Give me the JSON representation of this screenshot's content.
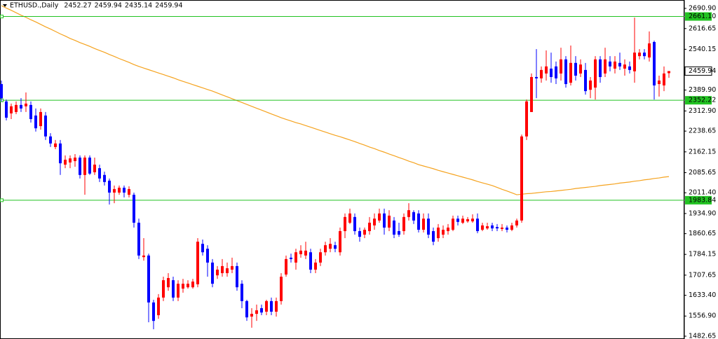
{
  "chart_data": {
    "type": "candlestick",
    "title": "ETHUSD.,Daily",
    "header_values": [
      2452.27,
      2459.94,
      2435.14,
      2459.94
    ],
    "up_color": "#ff0000",
    "down_color": "#0000ff",
    "open": [
      2412,
      2348,
      2304,
      2309,
      2335,
      2330,
      2335,
      2296,
      2257,
      2296,
      2219,
      2180,
      2193,
      2115,
      2123,
      2128,
      2141,
      2077,
      2141,
      2087,
      2102,
      2077,
      2056,
      2012,
      2012,
      2030,
      2004,
      2004,
      1901,
      1774,
      1780,
      1607,
      1560,
      1625,
      1663,
      1689,
      1625,
      1658,
      1663,
      1663,
      1674,
      1823,
      1805,
      1754,
      1707,
      1715,
      1715,
      1728,
      1741,
      1676,
      1612,
      1555,
      1565,
      1586,
      1573,
      1612,
      1573,
      1612,
      1710,
      1772,
      1754,
      1785,
      1780,
      1792,
      1728,
      1754,
      1792,
      1805,
      1818,
      1792,
      1870,
      1901,
      1922,
      1870,
      1857,
      1870,
      1891,
      1909,
      1935,
      1883,
      1909,
      1870,
      1870,
      1922,
      1940,
      1935,
      1875,
      1916,
      1870,
      1844,
      1857,
      1870,
      1875,
      1916,
      1901,
      1906,
      1906,
      1916,
      1875,
      1880,
      1891,
      1885,
      1878,
      1883,
      1875,
      1891,
      1909,
      2219,
      2309,
      2438,
      2433,
      2451,
      2469,
      2477,
      2451,
      2503,
      2417,
      2490,
      2451,
      2464,
      2391,
      2399,
      2503,
      2451,
      2495,
      2469,
      2490,
      2469,
      2477,
      2459,
      2515,
      2528,
      2510,
      2567,
      2412,
      2407,
      2452.27
    ],
    "high": [
      2425,
      2355,
      2340,
      2348,
      2360,
      2381,
      2348,
      2322,
      2322,
      2309,
      2231,
      2206,
      2206,
      2149,
      2149,
      2154,
      2149,
      2149,
      2149,
      2141,
      2115,
      2089,
      2064,
      2038,
      2038,
      2038,
      2035,
      2012,
      1916,
      1844,
      1787,
      1617,
      1638,
      1702,
      1715,
      1702,
      1689,
      1694,
      1689,
      1694,
      1844,
      1839,
      1818,
      1767,
      1741,
      1767,
      1754,
      1772,
      1754,
      1689,
      1617,
      1586,
      1599,
      1599,
      1617,
      1625,
      1625,
      1715,
      1780,
      1787,
      1805,
      1818,
      1831,
      1805,
      1767,
      1805,
      1831,
      1844,
      1831,
      1883,
      1935,
      1953,
      1935,
      1883,
      1883,
      1922,
      1935,
      1953,
      1953,
      1947,
      1922,
      1901,
      1935,
      1973,
      1947,
      1947,
      1935,
      1935,
      1883,
      1896,
      1891,
      1896,
      1927,
      1927,
      1927,
      1922,
      1932,
      1935,
      1901,
      1901,
      1901,
      1896,
      1896,
      1891,
      1901,
      1916,
      2226,
      2355,
      2451,
      2541,
      2477,
      2536,
      2528,
      2495,
      2546,
      2515,
      2554,
      2515,
      2503,
      2490,
      2438,
      2515,
      2515,
      2546,
      2515,
      2515,
      2528,
      2503,
      2495,
      2657,
      2541,
      2541,
      2606,
      2572,
      2443,
      2477,
      2459.94
    ],
    "low": [
      2348,
      2278,
      2283,
      2301,
      2309,
      2309,
      2270,
      2237,
      2244,
      2206,
      2180,
      2172,
      2077,
      2102,
      2102,
      2107,
      2064,
      2004,
      2077,
      2077,
      2051,
      2038,
      1968,
      1973,
      2004,
      1994,
      1994,
      1883,
      1767,
      1761,
      1534,
      1508,
      1547,
      1612,
      1650,
      1612,
      1612,
      1643,
      1658,
      1658,
      1663,
      1780,
      1702,
      1663,
      1694,
      1702,
      1702,
      1715,
      1650,
      1586,
      1539,
      1514,
      1539,
      1560,
      1560,
      1560,
      1555,
      1599,
      1702,
      1754,
      1728,
      1772,
      1767,
      1715,
      1715,
      1741,
      1780,
      1792,
      1792,
      1780,
      1844,
      1896,
      1857,
      1831,
      1844,
      1857,
      1875,
      1901,
      1857,
      1870,
      1844,
      1849,
      1857,
      1909,
      1896,
      1865,
      1865,
      1844,
      1818,
      1831,
      1844,
      1857,
      1870,
      1891,
      1896,
      1901,
      1901,
      1862,
      1870,
      1875,
      1870,
      1870,
      1870,
      1865,
      1870,
      1883,
      1901,
      2206,
      2309,
      2360,
      2417,
      2425,
      2417,
      2412,
      2425,
      2399,
      2407,
      2425,
      2438,
      2373,
      2360,
      2355,
      2417,
      2438,
      2459,
      2451,
      2464,
      2443,
      2451,
      2417,
      2503,
      2503,
      2495,
      2355,
      2366,
      2386,
      2435.14
    ],
    "close": [
      2360,
      2288,
      2330,
      2335,
      2322,
      2340,
      2283,
      2249,
      2309,
      2219,
      2193,
      2193,
      2120,
      2133,
      2138,
      2141,
      2077,
      2141,
      2082,
      2115,
      2064,
      2051,
      2012,
      2025,
      2030,
      2012,
      2025,
      1901,
      1780,
      1780,
      1607,
      1539,
      1625,
      1689,
      1697,
      1625,
      1676,
      1676,
      1676,
      1684,
      1831,
      1792,
      1754,
      1676,
      1728,
      1741,
      1733,
      1741,
      1663,
      1612,
      1552,
      1565,
      1578,
      1570,
      1612,
      1573,
      1612,
      1702,
      1767,
      1767,
      1792,
      1798,
      1798,
      1728,
      1754,
      1792,
      1818,
      1823,
      1805,
      1870,
      1922,
      1935,
      1870,
      1849,
      1875,
      1901,
      1916,
      1935,
      1883,
      1927,
      1857,
      1857,
      1922,
      1947,
      1909,
      1875,
      1916,
      1857,
      1831,
      1883,
      1875,
      1883,
      1916,
      1904,
      1916,
      1914,
      1916,
      1870,
      1891,
      1888,
      1880,
      1880,
      1883,
      1875,
      1891,
      1909,
      2219,
      2348,
      2438,
      2433,
      2464,
      2477,
      2438,
      2433,
      2503,
      2412,
      2490,
      2443,
      2484,
      2386,
      2425,
      2503,
      2438,
      2503,
      2477,
      2495,
      2477,
      2484,
      2464,
      2528,
      2528,
      2515,
      2562,
      2407,
      2425,
      2451,
      2459.94
    ],
    "ma": {
      "color": "#f5a31f",
      "values": [
        2701,
        2692,
        2684,
        2675,
        2666,
        2658,
        2649,
        2641,
        2632,
        2623,
        2615,
        2606,
        2597,
        2589,
        2580,
        2573,
        2565,
        2558,
        2551,
        2543,
        2536,
        2529,
        2521,
        2514,
        2506,
        2499,
        2492,
        2484,
        2477,
        2471,
        2465,
        2459,
        2453,
        2447,
        2441,
        2435,
        2428,
        2422,
        2416,
        2410,
        2404,
        2398,
        2392,
        2386,
        2379,
        2372,
        2365,
        2358,
        2351,
        2344,
        2337,
        2330,
        2323,
        2316,
        2309,
        2302,
        2295,
        2288,
        2282,
        2276,
        2270,
        2265,
        2259,
        2253,
        2247,
        2241,
        2235,
        2229,
        2223,
        2218,
        2212,
        2206,
        2200,
        2193,
        2187,
        2180,
        2174,
        2167,
        2161,
        2154,
        2148,
        2141,
        2135,
        2128,
        2122,
        2115,
        2110,
        2105,
        2100,
        2094,
        2089,
        2084,
        2079,
        2074,
        2069,
        2064,
        2059,
        2053,
        2048,
        2043,
        2038,
        2031,
        2024,
        2018,
        2011,
        2004,
        2006,
        2008,
        2009,
        2011,
        2013,
        2015,
        2016,
        2018,
        2020,
        2022,
        2024,
        2027,
        2029,
        2031,
        2033,
        2035,
        2038,
        2040,
        2042,
        2044,
        2047,
        2049,
        2051,
        2054,
        2056,
        2059,
        2061,
        2064,
        2066,
        2069,
        2071
      ]
    },
    "levels": {
      "color": "#22c322",
      "values": [
        {
          "value": 2661.1,
          "label": "2661.10"
        },
        {
          "value": 2352.22,
          "label": "2352.22"
        },
        {
          "value": 1983.84,
          "label": "1983.84"
        }
      ]
    },
    "last_price": 2459.94,
    "ylim": [
      1472.3,
      2721.9
    ],
    "yticks": [
      {
        "value": 2690.9,
        "label": "2690.90"
      },
      {
        "value": 2616.65,
        "label": "2616.65"
      },
      {
        "value": 2540.15,
        "label": "2540.15"
      },
      {
        "value": 2389.9,
        "label": "2389.90"
      },
      {
        "value": 2312.9,
        "label": "2312.90"
      },
      {
        "value": 2238.65,
        "label": "2238.65"
      },
      {
        "value": 2162.15,
        "label": "2162.15"
      },
      {
        "value": 2085.65,
        "label": "2085.65"
      },
      {
        "value": 2011.4,
        "label": "2011.40"
      },
      {
        "value": 1934.9,
        "label": "1934.90"
      },
      {
        "value": 1860.65,
        "label": "1860.65"
      },
      {
        "value": 1784.15,
        "label": "1784.15"
      },
      {
        "value": 1707.65,
        "label": "1707.65"
      },
      {
        "value": 1633.4,
        "label": "1633.40"
      },
      {
        "value": 1556.9,
        "label": "1556.90"
      },
      {
        "value": 1482.65,
        "label": "1482.65"
      }
    ]
  }
}
